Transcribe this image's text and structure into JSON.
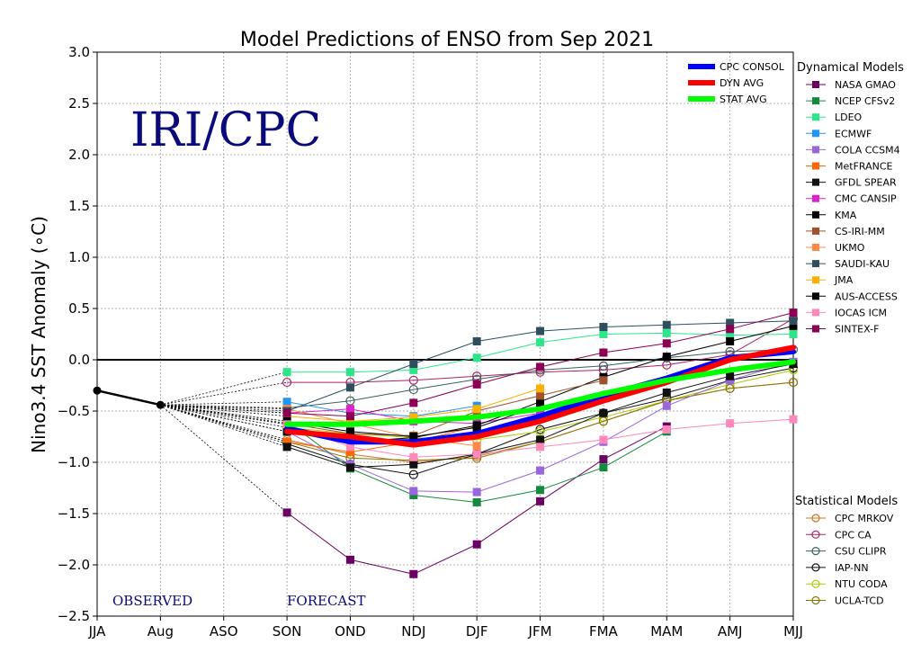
{
  "chart_data": {
    "type": "line",
    "title": "Model Predictions of ENSO from Sep 2021",
    "ylabel": "Nino3.4 SST Anomaly (∘C)",
    "xlabel": "",
    "categories": [
      "JJA",
      "Aug",
      "ASO",
      "SON",
      "OND",
      "NDJ",
      "DJF",
      "JFM",
      "FMA",
      "MAM",
      "AMJ",
      "MJJ"
    ],
    "ylim": [
      -2.5,
      3.0
    ],
    "yticks": [
      3.0,
      2.5,
      2.0,
      1.5,
      1.0,
      0.5,
      0.0,
      -0.5,
      -1.0,
      -1.5,
      -2.0,
      -2.5
    ],
    "ytick_labels": [
      "3.0",
      "2.5",
      "2.0",
      "1.5",
      "1.0",
      "0.5",
      "0.0",
      "−0.5",
      "−1.0",
      "−1.5",
      "−2.0",
      "−2.5"
    ],
    "grid": true,
    "watermark": "IRI/CPC",
    "observed_label": "OBSERVED",
    "forecast_label": "FORECAST",
    "observed": [
      -0.3,
      -0.44
    ],
    "dynamical_header": "Dynamical Models",
    "statistical_header": "Statistical Models",
    "averages": [
      {
        "name": "CPC CONSOL",
        "color": "#0000ff",
        "values": [
          -0.67,
          -0.8,
          -0.8,
          -0.72,
          -0.55,
          -0.35,
          -0.18,
          0.02,
          0.08
        ]
      },
      {
        "name": "DYN AVG",
        "color": "#ff0000",
        "values": [
          -0.7,
          -0.75,
          -0.83,
          -0.75,
          -0.6,
          -0.4,
          -0.22,
          0.0,
          0.12
        ]
      },
      {
        "name": "STAT AVG",
        "color": "#00ff00",
        "values": [
          -0.63,
          -0.63,
          -0.6,
          -0.56,
          -0.48,
          -0.33,
          -0.2,
          -0.1,
          -0.02
        ]
      }
    ],
    "dynamical": [
      {
        "name": "NASA GMAO",
        "color": "#6b0064",
        "values": [
          -1.49,
          -1.95,
          -2.09,
          -1.8,
          -1.38,
          -0.97,
          -0.65,
          null,
          null
        ]
      },
      {
        "name": "NCEP CFSv2",
        "color": "#138a3c",
        "values": [
          -0.6,
          -1.06,
          -1.32,
          -1.39,
          -1.27,
          -1.05,
          -0.7,
          null,
          null
        ]
      },
      {
        "name": "LDEO",
        "color": "#2ee68a",
        "values": [
          -0.12,
          -0.12,
          -0.1,
          0.02,
          0.17,
          0.25,
          0.26,
          0.24,
          0.25
        ]
      },
      {
        "name": "ECMWF",
        "color": "#2196f3",
        "values": [
          -0.41,
          -0.52,
          -0.55,
          -0.45,
          null,
          null,
          null,
          null,
          null
        ]
      },
      {
        "name": "COLA CCSM4",
        "color": "#9966dd",
        "values": [
          -0.7,
          -1.02,
          -1.28,
          -1.29,
          -1.08,
          -0.8,
          -0.45,
          -0.2,
          -0.02
        ]
      },
      {
        "name": "MetFRANCE",
        "color": "#ff6600",
        "values": [
          -0.8,
          -0.9,
          -0.8,
          -0.65,
          null,
          null,
          null,
          null,
          null
        ]
      },
      {
        "name": "GFDL SPEAR",
        "color": "#111111",
        "values": [
          -0.85,
          -1.05,
          -1.02,
          -0.92,
          -0.78,
          -0.52,
          -0.32,
          -0.16,
          -0.04
        ]
      },
      {
        "name": "CMC CANSIP",
        "color": "#dd22cc",
        "values": [
          -0.52,
          -0.48,
          -0.6,
          -0.62,
          -0.52,
          null,
          null,
          null,
          null
        ]
      },
      {
        "name": "KMA",
        "color": "#000000",
        "values": [
          -0.7,
          -0.8,
          -0.76,
          -0.64,
          -0.41,
          -0.17,
          0.03,
          0.18,
          0.33
        ]
      },
      {
        "name": "CS-IRI-MM",
        "color": "#a0522d",
        "values": [
          -0.62,
          -0.72,
          -0.74,
          -0.5,
          -0.35,
          -0.2,
          null,
          null,
          null
        ]
      },
      {
        "name": "UKMO",
        "color": "#ff8844",
        "values": [
          -0.48,
          -0.62,
          -0.76,
          -0.84,
          null,
          null,
          null,
          null,
          null
        ]
      },
      {
        "name": "SAUDI-KAU",
        "color": "#2f4f5f",
        "values": [
          -0.5,
          -0.27,
          -0.04,
          0.18,
          0.28,
          0.32,
          0.34,
          0.36,
          0.38
        ]
      },
      {
        "name": "JMA",
        "color": "#ffb000",
        "values": [
          -0.55,
          -0.6,
          -0.56,
          -0.48,
          -0.28,
          null,
          null,
          null,
          null
        ]
      },
      {
        "name": "AUS-ACCESS",
        "color": "#000000",
        "values": [
          -0.6,
          -0.7,
          -0.75,
          -0.66,
          -0.45,
          null,
          null,
          null,
          null
        ]
      },
      {
        "name": "IOCAS ICM",
        "color": "#ff88bb",
        "values": [
          -0.63,
          -0.85,
          -0.95,
          -0.92,
          -0.85,
          -0.78,
          -0.68,
          -0.62,
          -0.58
        ]
      },
      {
        "name": "SINTEX-F",
        "color": "#8b0055",
        "values": [
          -0.52,
          -0.55,
          -0.42,
          -0.24,
          -0.07,
          0.07,
          0.16,
          0.3,
          0.46
        ]
      }
    ],
    "statistical": [
      {
        "name": "CPC MRKOV",
        "color": "#cc7722",
        "values": [
          -0.78,
          -0.92,
          -1.0,
          -0.94,
          -0.8,
          -0.6,
          -0.4,
          -0.28,
          -0.22
        ]
      },
      {
        "name": "CPC CA",
        "color": "#aa2266",
        "values": [
          -0.22,
          -0.22,
          -0.2,
          -0.16,
          -0.12,
          -0.1,
          -0.05,
          0.05,
          0.4
        ]
      },
      {
        "name": "CSU CLIPR",
        "color": "#3a5f5f",
        "values": [
          -0.47,
          -0.4,
          -0.29,
          -0.19,
          -0.1,
          -0.06,
          0.02,
          0.08,
          0.1
        ]
      },
      {
        "name": "IAP-NN",
        "color": "#111111",
        "values": [
          -0.82,
          -1.02,
          -1.12,
          -0.92,
          -0.68,
          -0.52,
          -0.38,
          -0.2,
          -0.08
        ]
      },
      {
        "name": "NTU CODA",
        "color": "#aacc00",
        "values": [
          -0.66,
          -0.72,
          -0.76,
          -0.78,
          -0.7,
          -0.56,
          -0.4,
          -0.24,
          -0.1
        ]
      },
      {
        "name": "UCLA-TCD",
        "color": "#8b7500",
        "values": [
          -0.8,
          -0.96,
          -0.98,
          -0.96,
          -0.8,
          -0.6,
          -0.4,
          -0.28,
          -0.22
        ]
      }
    ]
  }
}
